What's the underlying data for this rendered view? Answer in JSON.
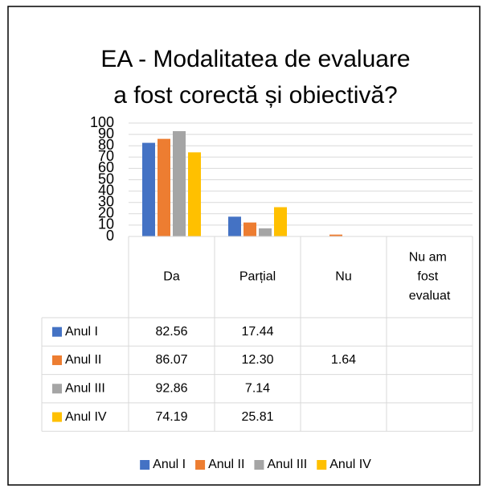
{
  "chart_data": {
    "type": "bar",
    "title": [
      "EA -  Modalitatea de evaluare",
      "a fost corectă și obiectivă?"
    ],
    "categories": [
      "Da",
      "Parțial",
      "Nu",
      "Nu am fost evaluat"
    ],
    "series": [
      {
        "name": "Anul I",
        "color": "#4472c4",
        "values": [
          82.56,
          17.44,
          null,
          null
        ],
        "value_labels": [
          "82.56",
          "17.44",
          null,
          null
        ]
      },
      {
        "name": "Anul II",
        "color": "#ed7d31",
        "values": [
          86.07,
          12.3,
          1.64,
          null
        ],
        "value_labels": [
          "86.07",
          "12.30",
          "1.64",
          null
        ]
      },
      {
        "name": "Anul III",
        "color": "#a5a5a5",
        "values": [
          92.86,
          7.14,
          null,
          null
        ],
        "value_labels": [
          "92.86",
          "7.14",
          null,
          null
        ]
      },
      {
        "name": "Anul IV",
        "color": "#ffc000",
        "values": [
          74.19,
          25.81,
          null,
          null
        ],
        "value_labels": [
          "74.19",
          "25.81",
          null,
          null
        ]
      }
    ],
    "ylim": [
      0,
      100
    ],
    "yticks": [
      0,
      10,
      20,
      30,
      40,
      50,
      60,
      70,
      80,
      90,
      100
    ],
    "grid": true,
    "legend": "bottom"
  }
}
